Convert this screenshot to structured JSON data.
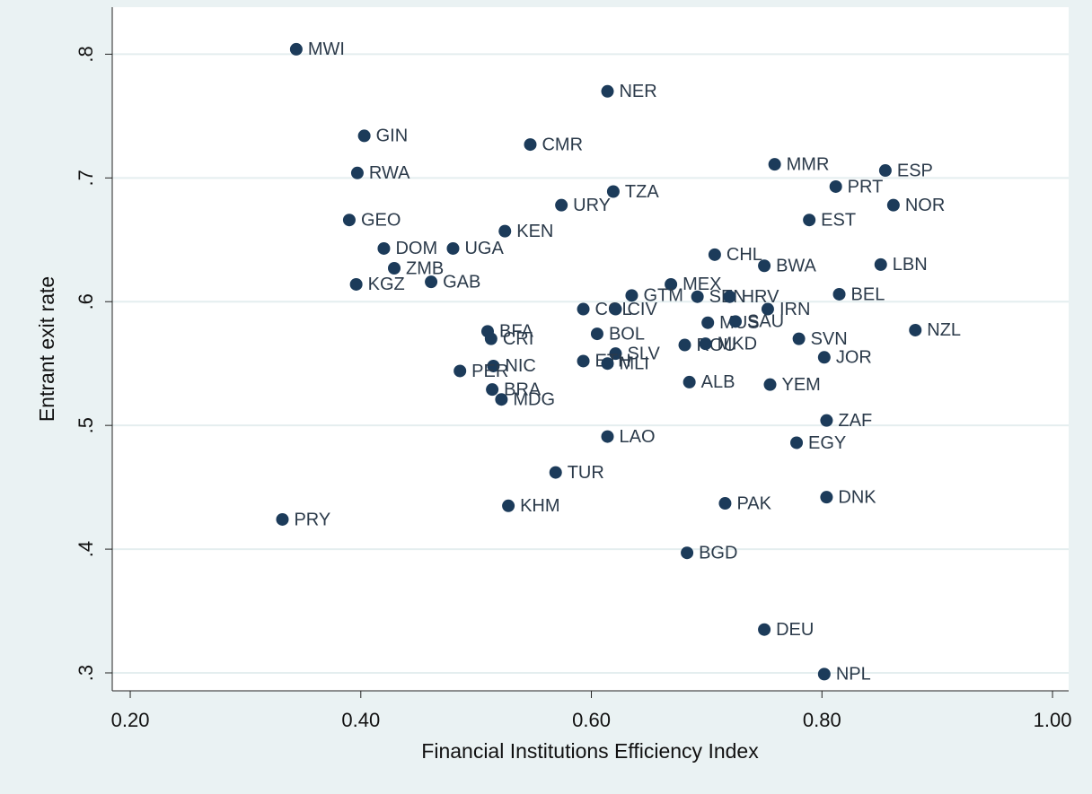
{
  "chart_data": {
    "type": "scatter",
    "x_label": "Financial Institutions Efficiency Index",
    "y_label": "Entrant exit rate",
    "color": "#1c3b5a",
    "grid": true,
    "xlim": [
      0.1844,
      1.014
    ],
    "ylim": [
      0.2855,
      0.838
    ],
    "xticks": [
      {
        "value": 0.2,
        "label": "0.20"
      },
      {
        "value": 0.4,
        "label": "0.40"
      },
      {
        "value": 0.6,
        "label": "0.60"
      },
      {
        "value": 0.8,
        "label": "0.80"
      },
      {
        "value": 1.0,
        "label": "1.00"
      }
    ],
    "yticks": [
      {
        "value": 0.3,
        "label": ".3"
      },
      {
        "value": 0.4,
        "label": ".4"
      },
      {
        "value": 0.5,
        "label": ".5"
      },
      {
        "value": 0.6,
        "label": ".6"
      },
      {
        "value": 0.7,
        "label": ".7"
      },
      {
        "value": 0.8,
        "label": ".8"
      }
    ],
    "labels": [
      "MWI",
      "NER",
      "GIN",
      "CMR",
      "MMR",
      "ESP",
      "RWA",
      "PRT",
      "TZA",
      "URY",
      "NOR",
      "GEO",
      "EST",
      "KEN",
      "DOM",
      "UGA",
      "CHL",
      "BWA",
      "LBN",
      "ZMB",
      "KGZ",
      "GAB",
      "MEX",
      "GTM",
      "SEN",
      "HRV",
      "BEL",
      "COL",
      "CIV",
      "IRN",
      "MUS",
      "SAU",
      "NZL",
      "BFA",
      "CRI",
      "BOL",
      "SVN",
      "ROU",
      "MKD",
      "SLV",
      "JOR",
      "ETH",
      "MLI",
      "NIC",
      "PER",
      "ALB",
      "YEM",
      "BRA",
      "MDG",
      "ZAF",
      "LAO",
      "EGY",
      "TUR",
      "DNK",
      "PAK",
      "KHM",
      "PRY",
      "BGD",
      "DEU",
      "NPL"
    ],
    "x": [
      0.344,
      0.614,
      0.403,
      0.547,
      0.759,
      0.855,
      0.397,
      0.812,
      0.619,
      0.574,
      0.862,
      0.39,
      0.789,
      0.525,
      0.42,
      0.48,
      0.707,
      0.75,
      0.851,
      0.429,
      0.396,
      0.461,
      0.669,
      0.635,
      0.692,
      0.72,
      0.815,
      0.593,
      0.621,
      0.753,
      0.701,
      0.725,
      0.881,
      0.51,
      0.513,
      0.605,
      0.78,
      0.681,
      0.699,
      0.621,
      0.802,
      0.593,
      0.614,
      0.515,
      0.486,
      0.685,
      0.755,
      0.514,
      0.522,
      0.804,
      0.614,
      0.778,
      0.569,
      0.804,
      0.716,
      0.528,
      0.332,
      0.683,
      0.75,
      0.802
    ],
    "values": [
      0.804,
      0.77,
      0.734,
      0.727,
      0.711,
      0.706,
      0.704,
      0.693,
      0.689,
      0.678,
      0.678,
      0.666,
      0.666,
      0.657,
      0.643,
      0.643,
      0.638,
      0.629,
      0.63,
      0.627,
      0.614,
      0.616,
      0.614,
      0.605,
      0.604,
      0.604,
      0.606,
      0.594,
      0.594,
      0.594,
      0.583,
      0.584,
      0.577,
      0.576,
      0.57,
      0.574,
      0.57,
      0.565,
      0.566,
      0.558,
      0.555,
      0.552,
      0.55,
      0.548,
      0.544,
      0.535,
      0.533,
      0.529,
      0.521,
      0.504,
      0.491,
      0.486,
      0.462,
      0.442,
      0.437,
      0.435,
      0.424,
      0.397,
      0.335,
      0.299
    ]
  }
}
